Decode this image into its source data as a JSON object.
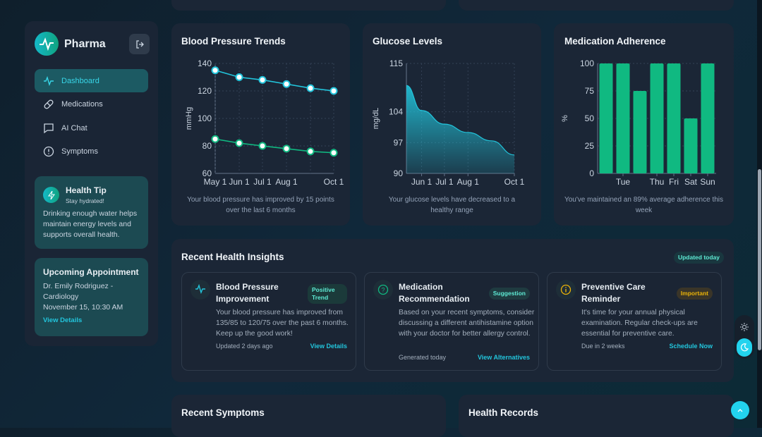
{
  "sidebar": {
    "brand": "Pharma",
    "items": [
      {
        "label": "Dashboard",
        "icon": "activity-icon",
        "active": true
      },
      {
        "label": "Medications",
        "icon": "pill-icon"
      },
      {
        "label": "AI Chat",
        "icon": "chat-icon"
      },
      {
        "label": "Symptoms",
        "icon": "alert-circle-icon"
      }
    ],
    "tip": {
      "title": "Health Tip",
      "subtitle": "Stay hydrated!",
      "text": "Drinking enough water helps maintain energy levels and supports overall health."
    },
    "appointment": {
      "title": "Upcoming Appointment",
      "doctor": "Dr. Emily Rodriguez - Cardiology",
      "time": "November 15, 10:30 AM",
      "link": "View Details"
    }
  },
  "charts": {
    "bp": {
      "title": "Blood Pressure Trends",
      "caption": "Your blood pressure has improved by 15 points over the last 6 months"
    },
    "glucose": {
      "title": "Glucose Levels",
      "caption": "Your glucose levels have decreased to a healthy range"
    },
    "adherence": {
      "title": "Medication Adherence",
      "caption": "You've maintained an 89% average adherence this week"
    }
  },
  "chart_data": [
    {
      "type": "line",
      "title": "Blood Pressure Trends",
      "ylabel": "mmHg",
      "ylim": [
        60,
        140
      ],
      "yticks": [
        60,
        80,
        100,
        120,
        140
      ],
      "x": [
        "2024-05-01",
        "2024-06-01",
        "2024-07-01",
        "2024-08-01",
        "2024-09-01",
        "2024-10-01"
      ],
      "xtick_labels": [
        "May 1",
        "Jun 1",
        "Jul 1",
        "Aug 1",
        "",
        "Oct 1"
      ],
      "grid": true,
      "series": [
        {
          "values": [
            135,
            130,
            128,
            125,
            122,
            120
          ],
          "color": "#22c5dc"
        },
        {
          "values": [
            85,
            82,
            80,
            78,
            76,
            75
          ],
          "color": "#10b981"
        }
      ]
    },
    {
      "type": "area",
      "title": "Glucose Levels",
      "ylabel": "mg/dL",
      "ylim": [
        90,
        115
      ],
      "yticks": [
        90,
        97,
        104,
        115
      ],
      "x": [
        "2024-05-12",
        "2024-06-01",
        "2024-07-01",
        "2024-08-01",
        "2024-09-01",
        "2024-10-01"
      ],
      "xticks": [
        "2024-06-01",
        "2024-07-01",
        "2024-08-01",
        "2024-10-01"
      ],
      "xtick_labels": [
        "Jun 1",
        "Jul 1",
        "Aug 1",
        "Oct 1"
      ],
      "values": [
        110,
        104.3,
        101.2,
        99.3,
        97.4,
        94.2
      ],
      "color": "#22c5dc",
      "grid": true
    },
    {
      "type": "bar",
      "title": "Medication Adherence",
      "ylabel": "%",
      "ylim": [
        0,
        100
      ],
      "yticks": [
        0,
        25,
        50,
        75,
        100
      ],
      "categories": [
        "",
        "Tue",
        "",
        "Thu",
        "Fri",
        "Sat",
        "Sun"
      ],
      "values": [
        100,
        100,
        75,
        100,
        100,
        50,
        100
      ],
      "color": "#10b981",
      "grid": true
    }
  ],
  "insights": {
    "title": "Recent Health Insights",
    "badge": "Updated today",
    "items": [
      {
        "title": "Blood Pressure Improvement",
        "badge": "Positive Trend",
        "text": "Your blood pressure has improved from 135/85 to 120/75 over the past 6 months. Keep up the good work!",
        "meta": "Updated 2 days ago",
        "action": "View Details",
        "icon": "activity-icon",
        "color": "#22c5dc"
      },
      {
        "title": "Medication Recommendation",
        "badge": "Suggestion",
        "text": "Based on your recent symptoms, consider discussing a different antihistamine option with your doctor for better allergy control.",
        "meta": "Generated today",
        "action": "View Alternatives",
        "icon": "question-circle-icon",
        "color": "#10b981"
      },
      {
        "title": "Preventive Care Reminder",
        "badge": "Important",
        "text": "It's time for your annual physical examination. Regular check-ups are essential for preventive care.",
        "meta": "Due in 2 weeks",
        "action": "Schedule Now",
        "icon": "info-circle-icon",
        "color": "#eab308"
      }
    ]
  },
  "bottom": {
    "symptoms": "Recent Symptoms",
    "records": "Health Records"
  }
}
